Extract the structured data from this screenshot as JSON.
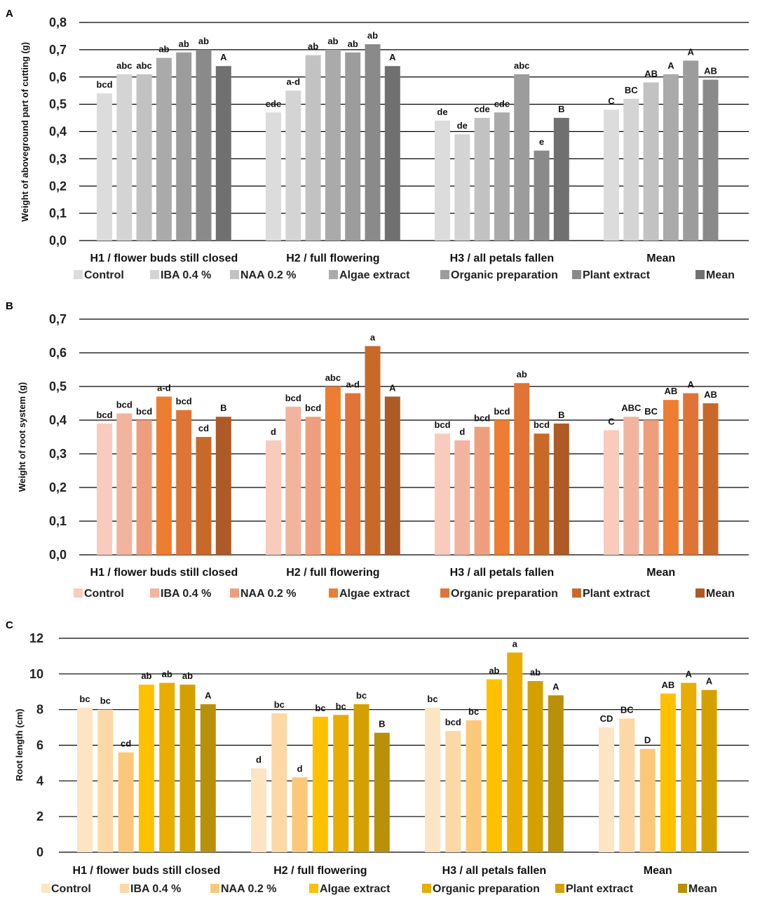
{
  "figure": {
    "legend_labels": [
      "Control",
      "IBA 0.4 %",
      "NAA 0.2 %",
      "Algae extract",
      "Organic preparation",
      "Plant extract",
      "Mean"
    ],
    "categories": [
      "H1 / flower buds still closed",
      "H2 / full flowering",
      "H3 / all petals fallen",
      "Mean"
    ]
  },
  "chart_data": [
    {
      "panel": "A",
      "type": "bar",
      "ylabel": "Weight of aboveground part of cutting (g)",
      "ylim": [
        0,
        0.8
      ],
      "yticks": [
        "0,0",
        "0,1",
        "0,2",
        "0,3",
        "0,4",
        "0,5",
        "0,6",
        "0,7",
        "0,8"
      ],
      "grid": true,
      "legend": "bottom",
      "categories": [
        "H1 / flower buds still closed",
        "H2 / full flowering",
        "H3 / all petals fallen",
        "Mean"
      ],
      "colors": [
        "#dcdcdc",
        "#d4d4d4",
        "#c2c2c2",
        "#aaaaaa",
        "#9c9c9c",
        "#8a8a8a",
        "#707070"
      ],
      "series": [
        {
          "name": "Control",
          "values": [
            0.54,
            0.47,
            0.44,
            0.48
          ],
          "labels": [
            "bcd",
            "cde",
            "de",
            "C"
          ]
        },
        {
          "name": "IBA 0.4 %",
          "values": [
            0.61,
            0.55,
            0.39,
            0.52
          ],
          "labels": [
            "abc",
            "a-d",
            "de",
            "BC"
          ]
        },
        {
          "name": "NAA 0.2 %",
          "values": [
            0.61,
            0.68,
            0.45,
            0.58
          ],
          "labels": [
            "abc",
            "ab",
            "cde",
            "AB"
          ]
        },
        {
          "name": "Algae extract",
          "values": [
            0.67,
            0.7,
            0.47,
            0.61
          ],
          "labels": [
            "ab",
            "ab",
            "cde",
            "A"
          ]
        },
        {
          "name": "Organic preparation",
          "values": [
            0.69,
            0.69,
            0.61,
            0.66
          ],
          "labels": [
            "ab",
            "ab",
            "abc",
            "A"
          ]
        },
        {
          "name": "Plant extract",
          "values": [
            0.7,
            0.72,
            0.33,
            0.59
          ],
          "labels": [
            "ab",
            "ab",
            "e",
            "AB"
          ]
        },
        {
          "name": "Mean",
          "values": [
            0.64,
            0.64,
            0.45,
            null
          ],
          "labels": [
            "A",
            "A",
            "B",
            ""
          ]
        }
      ]
    },
    {
      "panel": "B",
      "type": "bar",
      "ylabel": "Weight of root system (g)",
      "ylim": [
        0,
        0.7
      ],
      "yticks": [
        "0,0",
        "0,1",
        "0,2",
        "0,3",
        "0,4",
        "0,5",
        "0,6",
        "0,7"
      ],
      "grid": true,
      "legend": "bottom",
      "categories": [
        "H1 / flower buds still closed",
        "H2 / full flowering",
        "H3 / all petals fallen",
        "Mean"
      ],
      "colors": [
        "#f8cbbd",
        "#f2b49e",
        "#ee9e7c",
        "#ed7d31",
        "#df7436",
        "#c8692a",
        "#ad5a26"
      ],
      "series": [
        {
          "name": "Control",
          "values": [
            0.39,
            0.34,
            0.36,
            0.37
          ],
          "labels": [
            "bcd",
            "d",
            "bcd",
            "C"
          ]
        },
        {
          "name": "IBA 0.4 %",
          "values": [
            0.42,
            0.44,
            0.34,
            0.41
          ],
          "labels": [
            "bcd",
            "bcd",
            "d",
            "ABC"
          ]
        },
        {
          "name": "NAA 0.2 %",
          "values": [
            0.4,
            0.41,
            0.38,
            0.4
          ],
          "labels": [
            "bcd",
            "bcd",
            "bcd",
            "BC"
          ]
        },
        {
          "name": "Algae extract",
          "values": [
            0.47,
            0.5,
            0.4,
            0.46
          ],
          "labels": [
            "a-d",
            "abc",
            "bcd",
            "AB"
          ]
        },
        {
          "name": "Organic preparation",
          "values": [
            0.43,
            0.48,
            0.51,
            0.48
          ],
          "labels": [
            "bcd",
            "a-d",
            "ab",
            "A"
          ]
        },
        {
          "name": "Plant extract",
          "values": [
            0.35,
            0.62,
            0.36,
            0.45
          ],
          "labels": [
            "cd",
            "a",
            "bcd",
            "AB"
          ]
        },
        {
          "name": "Mean",
          "values": [
            0.41,
            0.47,
            0.39,
            null
          ],
          "labels": [
            "B",
            "A",
            "B",
            ""
          ]
        }
      ]
    },
    {
      "panel": "C",
      "type": "bar",
      "ylabel": "Root length (cm)",
      "ylim": [
        0,
        12
      ],
      "yticks": [
        "0",
        "2",
        "4",
        "6",
        "8",
        "10",
        "12"
      ],
      "grid": true,
      "legend": "bottom",
      "categories": [
        "H1 / flower buds still closed",
        "H2 / full flowering",
        "H3 / all petals fallen",
        "Mean"
      ],
      "colors": [
        "#fde4c3",
        "#fcd8a6",
        "#fbc87a",
        "#ffc000",
        "#e8ad00",
        "#d4a000",
        "#b8900a"
      ],
      "series": [
        {
          "name": "Control",
          "values": [
            8.1,
            4.7,
            8.1,
            7.0
          ],
          "labels": [
            "bc",
            "d",
            "bc",
            "CD"
          ]
        },
        {
          "name": "IBA 0.4 %",
          "values": [
            8.0,
            7.8,
            6.8,
            7.5
          ],
          "labels": [
            "bc",
            "bc",
            "bcd",
            "BC"
          ]
        },
        {
          "name": "NAA 0.2 %",
          "values": [
            5.6,
            4.2,
            7.4,
            5.8
          ],
          "labels": [
            "cd",
            "d",
            "bc",
            "D"
          ]
        },
        {
          "name": "Algae extract",
          "values": [
            9.4,
            7.6,
            9.7,
            8.9
          ],
          "labels": [
            "ab",
            "bc",
            "ab",
            "AB"
          ]
        },
        {
          "name": "Organic preparation",
          "values": [
            9.5,
            7.7,
            11.2,
            9.5
          ],
          "labels": [
            "ab",
            "bc",
            "a",
            "A"
          ]
        },
        {
          "name": "Plant extract",
          "values": [
            9.4,
            8.3,
            9.6,
            9.1
          ],
          "labels": [
            "ab",
            "bc",
            "ab",
            "A"
          ]
        },
        {
          "name": "Mean",
          "values": [
            8.3,
            6.7,
            8.8,
            null
          ],
          "labels": [
            "A",
            "B",
            "A",
            ""
          ]
        }
      ]
    }
  ]
}
